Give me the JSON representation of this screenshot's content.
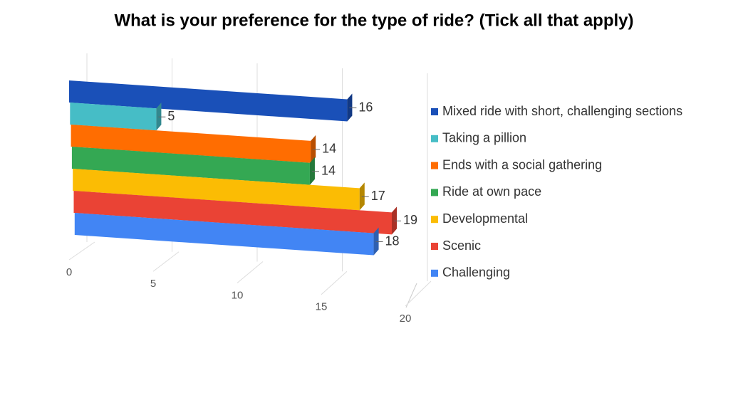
{
  "chart_data": {
    "type": "bar",
    "orientation": "horizontal",
    "title": "What is your preference for the type of ride? (Tick all that apply)",
    "series": [
      {
        "name": "Mixed ride with short, challenging sections",
        "color": "#1a50b8",
        "values": [
          16
        ]
      },
      {
        "name": "Taking a pillion",
        "color": "#46bdc6",
        "values": [
          5
        ]
      },
      {
        "name": "Ends with a social gathering",
        "color": "#ff6d01",
        "values": [
          14
        ]
      },
      {
        "name": "Ride at own pace",
        "color": "#34a853",
        "values": [
          14
        ]
      },
      {
        "name": "Developmental",
        "color": "#fbbc04",
        "values": [
          17
        ]
      },
      {
        "name": "Scenic",
        "color": "#ea4335",
        "values": [
          19
        ]
      },
      {
        "name": "Challenging",
        "color": "#4285f4",
        "values": [
          18
        ]
      }
    ],
    "xlim": [
      0,
      20
    ],
    "xticks": [
      0,
      5,
      10,
      15,
      20
    ],
    "grid": true,
    "legend": "right"
  }
}
